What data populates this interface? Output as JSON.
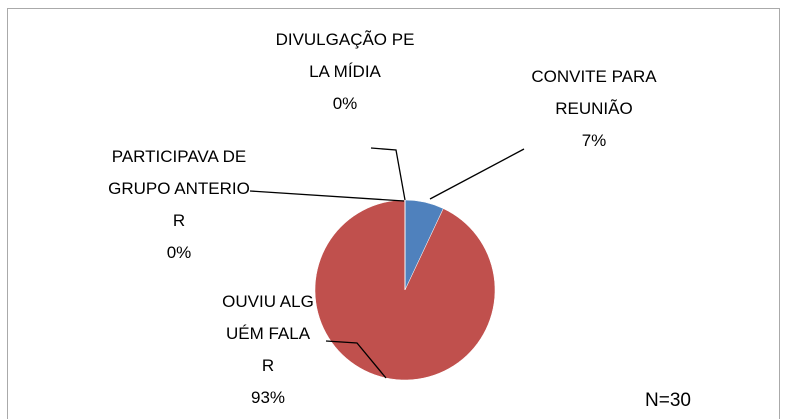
{
  "chart_data": {
    "type": "pie",
    "categories": [
      "CONVITE PARA REUNIÃO",
      "OUVIU ALGUÉM FALAR",
      "PARTICIPAVA DE GRUPO ANTERIOR",
      "DIVULGAÇÃO PELA MÍDIA"
    ],
    "values": [
      7,
      93,
      0,
      0
    ],
    "value_labels": [
      "7%",
      "93%",
      "0%",
      "0%"
    ],
    "colors": [
      "#4f81bd",
      "#c0504d",
      "#9bbb59",
      "#8064a2"
    ],
    "annotation": "N=30"
  }
}
